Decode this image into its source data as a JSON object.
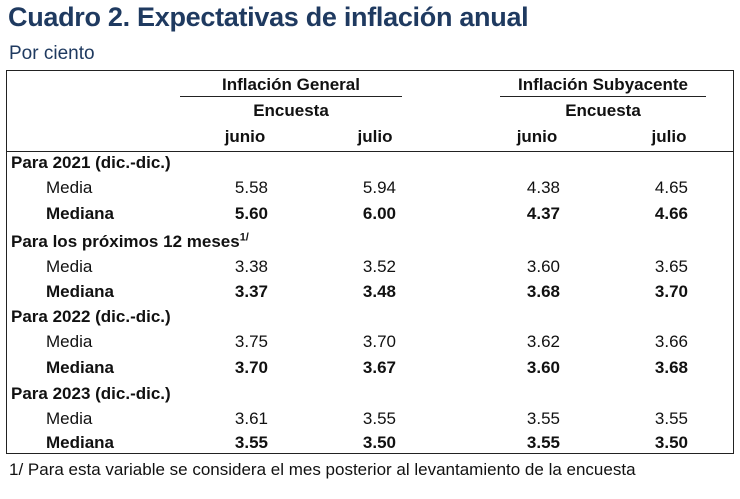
{
  "title": "Cuadro 2. Expectativas de inflación anual",
  "subtitle": "Por ciento",
  "groups": [
    {
      "label": "Inflación General",
      "sublabel": "Encuesta",
      "cols": [
        "junio",
        "julio"
      ]
    },
    {
      "label": "Inflación Subyacente",
      "sublabel": "Encuesta",
      "cols": [
        "junio",
        "julio"
      ]
    }
  ],
  "sections": [
    {
      "heading": "Para 2021 (dic.-dic.)",
      "heading_sup": "",
      "rows": [
        {
          "label": "Media",
          "values": [
            "5.58",
            "5.94",
            "4.38",
            "4.65"
          ]
        },
        {
          "label": "Mediana",
          "values": [
            "5.60",
            "6.00",
            "4.37",
            "4.66"
          ]
        }
      ]
    },
    {
      "heading": "Para los próximos 12 meses",
      "heading_sup": "1/",
      "rows": [
        {
          "label": "Media",
          "values": [
            "3.38",
            "3.52",
            "3.60",
            "3.65"
          ]
        },
        {
          "label": "Mediana",
          "values": [
            "3.37",
            "3.48",
            "3.68",
            "3.70"
          ]
        }
      ]
    },
    {
      "heading": "Para 2022 (dic.-dic.)",
      "heading_sup": "",
      "rows": [
        {
          "label": "Media",
          "values": [
            "3.75",
            "3.70",
            "3.62",
            "3.66"
          ]
        },
        {
          "label": "Mediana",
          "values": [
            "3.70",
            "3.67",
            "3.60",
            "3.68"
          ]
        }
      ]
    },
    {
      "heading": "Para 2023 (dic.-dic.)",
      "heading_sup": "",
      "rows": [
        {
          "label": "Media",
          "values": [
            "3.61",
            "3.55",
            "3.55",
            "3.55"
          ]
        },
        {
          "label": "Mediana",
          "values": [
            "3.55",
            "3.50",
            "3.55",
            "3.50"
          ]
        }
      ]
    }
  ],
  "footnote": "1/ Para esta variable se considera el mes posterior al levantamiento de la encuesta"
}
